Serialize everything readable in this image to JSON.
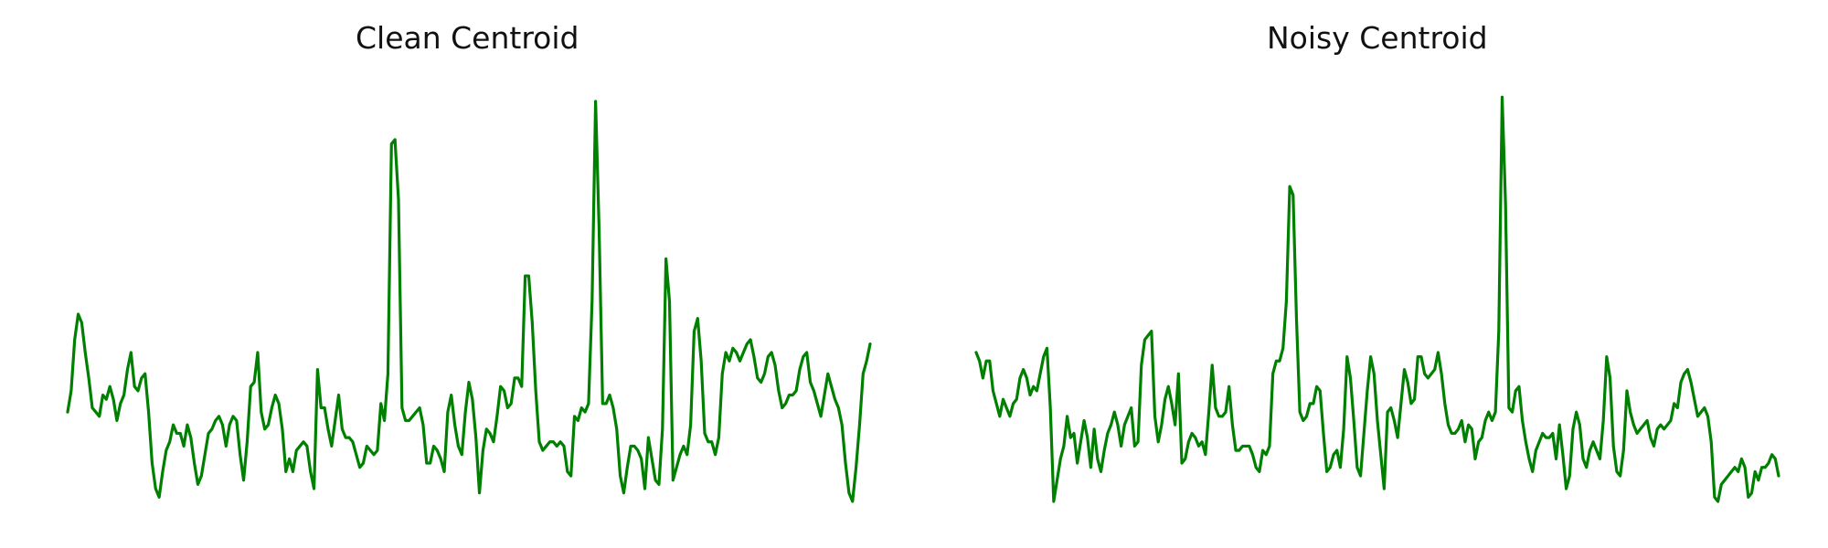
{
  "line_color": "#008000",
  "chart_data": [
    {
      "type": "line",
      "title": "Clean Centroid",
      "axis_visible": false,
      "grid": false,
      "ylim": [
        0,
        1
      ],
      "series": [
        {
          "values": [
            0.24,
            0.29,
            0.41,
            0.47,
            0.45,
            0.38,
            0.32,
            0.25,
            0.24,
            0.23,
            0.28,
            0.27,
            0.3,
            0.27,
            0.22,
            0.26,
            0.28,
            0.34,
            0.38,
            0.3,
            0.29,
            0.32,
            0.33,
            0.24,
            0.12,
            0.06,
            0.04,
            0.1,
            0.15,
            0.17,
            0.21,
            0.19,
            0.19,
            0.16,
            0.21,
            0.18,
            0.12,
            0.07,
            0.09,
            0.14,
            0.19,
            0.2,
            0.22,
            0.23,
            0.21,
            0.16,
            0.21,
            0.23,
            0.22,
            0.14,
            0.08,
            0.17,
            0.3,
            0.31,
            0.38,
            0.24,
            0.2,
            0.21,
            0.25,
            0.28,
            0.26,
            0.2,
            0.1,
            0.13,
            0.1,
            0.15,
            0.16,
            0.17,
            0.16,
            0.1,
            0.06,
            0.34,
            0.25,
            0.25,
            0.2,
            0.16,
            0.22,
            0.28,
            0.2,
            0.18,
            0.18,
            0.17,
            0.14,
            0.11,
            0.12,
            0.16,
            0.15,
            0.14,
            0.15,
            0.26,
            0.22,
            0.33,
            0.87,
            0.88,
            0.74,
            0.25,
            0.22,
            0.22,
            0.23,
            0.24,
            0.25,
            0.21,
            0.12,
            0.12,
            0.16,
            0.15,
            0.13,
            0.1,
            0.24,
            0.28,
            0.21,
            0.16,
            0.14,
            0.24,
            0.31,
            0.27,
            0.18,
            0.05,
            0.15,
            0.2,
            0.19,
            0.17,
            0.23,
            0.3,
            0.29,
            0.25,
            0.26,
            0.32,
            0.32,
            0.3,
            0.56,
            0.56,
            0.45,
            0.29,
            0.17,
            0.15,
            0.16,
            0.17,
            0.17,
            0.16,
            0.17,
            0.16,
            0.1,
            0.09,
            0.23,
            0.22,
            0.25,
            0.24,
            0.26,
            0.5,
            0.97,
            0.67,
            0.26,
            0.26,
            0.28,
            0.25,
            0.2,
            0.09,
            0.05,
            0.11,
            0.16,
            0.16,
            0.15,
            0.13,
            0.06,
            0.18,
            0.13,
            0.08,
            0.07,
            0.2,
            0.6,
            0.5,
            0.08,
            0.11,
            0.14,
            0.16,
            0.14,
            0.21,
            0.43,
            0.46,
            0.36,
            0.19,
            0.17,
            0.17,
            0.14,
            0.18,
            0.33,
            0.38,
            0.36,
            0.39,
            0.38,
            0.36,
            0.38,
            0.4,
            0.41,
            0.37,
            0.32,
            0.31,
            0.33,
            0.37,
            0.38,
            0.35,
            0.29,
            0.25,
            0.26,
            0.28,
            0.28,
            0.29,
            0.34,
            0.37,
            0.38,
            0.31,
            0.29,
            0.26,
            0.23,
            0.28,
            0.33,
            0.3,
            0.27,
            0.25,
            0.21,
            0.12,
            0.05,
            0.03,
            0.11,
            0.21,
            0.33,
            0.36,
            0.4
          ]
        }
      ]
    },
    {
      "type": "line",
      "title": "Noisy Centroid",
      "axis_visible": false,
      "grid": false,
      "ylim": [
        0,
        1
      ],
      "series": [
        {
          "values": [
            0.38,
            0.36,
            0.32,
            0.36,
            0.36,
            0.29,
            0.26,
            0.23,
            0.27,
            0.25,
            0.23,
            0.26,
            0.27,
            0.32,
            0.34,
            0.32,
            0.28,
            0.3,
            0.29,
            0.33,
            0.37,
            0.39,
            0.25,
            0.03,
            0.08,
            0.13,
            0.16,
            0.23,
            0.18,
            0.19,
            0.12,
            0.17,
            0.22,
            0.18,
            0.11,
            0.2,
            0.13,
            0.1,
            0.15,
            0.19,
            0.21,
            0.24,
            0.21,
            0.16,
            0.21,
            0.23,
            0.25,
            0.16,
            0.17,
            0.35,
            0.41,
            0.42,
            0.43,
            0.23,
            0.17,
            0.21,
            0.27,
            0.3,
            0.26,
            0.21,
            0.33,
            0.12,
            0.13,
            0.17,
            0.19,
            0.18,
            0.16,
            0.17,
            0.14,
            0.24,
            0.35,
            0.25,
            0.23,
            0.23,
            0.24,
            0.3,
            0.21,
            0.15,
            0.15,
            0.16,
            0.16,
            0.16,
            0.14,
            0.11,
            0.1,
            0.15,
            0.14,
            0.16,
            0.33,
            0.36,
            0.36,
            0.39,
            0.5,
            0.77,
            0.75,
            0.46,
            0.24,
            0.22,
            0.23,
            0.26,
            0.26,
            0.3,
            0.29,
            0.19,
            0.1,
            0.11,
            0.14,
            0.15,
            0.11,
            0.2,
            0.37,
            0.32,
            0.22,
            0.11,
            0.09,
            0.19,
            0.29,
            0.37,
            0.33,
            0.22,
            0.14,
            0.06,
            0.24,
            0.25,
            0.22,
            0.18,
            0.26,
            0.34,
            0.31,
            0.26,
            0.27,
            0.37,
            0.37,
            0.33,
            0.32,
            0.33,
            0.34,
            0.38,
            0.33,
            0.26,
            0.21,
            0.19,
            0.19,
            0.2,
            0.22,
            0.17,
            0.21,
            0.2,
            0.13,
            0.17,
            0.18,
            0.22,
            0.24,
            0.22,
            0.24,
            0.43,
            0.98,
            0.73,
            0.25,
            0.24,
            0.29,
            0.3,
            0.22,
            0.17,
            0.13,
            0.1,
            0.15,
            0.17,
            0.19,
            0.18,
            0.18,
            0.19,
            0.13,
            0.21,
            0.14,
            0.06,
            0.09,
            0.2,
            0.24,
            0.21,
            0.13,
            0.11,
            0.15,
            0.17,
            0.15,
            0.13,
            0.22,
            0.37,
            0.32,
            0.16,
            0.1,
            0.09,
            0.15,
            0.29,
            0.24,
            0.21,
            0.19,
            0.2,
            0.21,
            0.22,
            0.18,
            0.16,
            0.2,
            0.21,
            0.2,
            0.21,
            0.22,
            0.26,
            0.25,
            0.31,
            0.33,
            0.34,
            0.31,
            0.27,
            0.23,
            0.24,
            0.25,
            0.23,
            0.17,
            0.04,
            0.03,
            0.07,
            0.08,
            0.09,
            0.1,
            0.11,
            0.1,
            0.13,
            0.11,
            0.04,
            0.05,
            0.1,
            0.08,
            0.11,
            0.11,
            0.12,
            0.14,
            0.13,
            0.09
          ]
        }
      ]
    }
  ]
}
